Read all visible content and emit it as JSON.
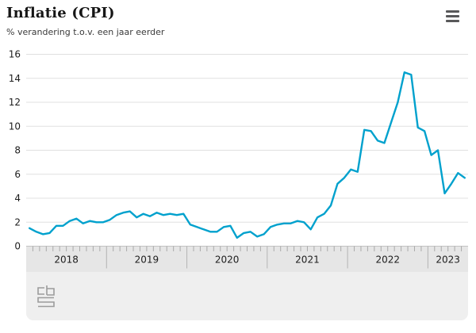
{
  "header": {
    "title": "Inflatie (CPI)",
    "subtitle": "% verandering t.o.v. een jaar eerder",
    "menu_icon": "hamburger-menu-icon"
  },
  "footer": {
    "logo_icon": "cbs-logo"
  },
  "colors": {
    "line": "#00a1cd",
    "grid": "#e0e0e0",
    "axis_band": "#e6e6e6",
    "band_edge": "#c3c3c3",
    "tick": "#aaaaaa",
    "year_separator": "#b3b3b3",
    "footer_band": "#efefef",
    "text": "#1d1d1d",
    "icon": "#58585a",
    "logo": "#9c9c9c"
  },
  "chart_data": {
    "type": "line",
    "title": "Inflatie (CPI)",
    "subtitle": "% verandering t.o.v. een jaar eerder",
    "unit": "%",
    "frequency": "monthly",
    "start_month": "2018-01",
    "end_month": "2023-06",
    "x_tick_labels": [
      "2018",
      "2019",
      "2020",
      "2021",
      "2022",
      "2023"
    ],
    "y_ticks": [
      0,
      2,
      4,
      6,
      8,
      10,
      12,
      14,
      16
    ],
    "ylim": [
      0,
      16
    ],
    "grid": true,
    "legend": false,
    "series": [
      {
        "name": "Inflatie (CPI)",
        "color": "#00a1cd",
        "values": [
          1.5,
          1.2,
          1.0,
          1.1,
          1.7,
          1.7,
          2.1,
          2.3,
          1.9,
          2.1,
          2.0,
          2.0,
          2.2,
          2.6,
          2.8,
          2.9,
          2.4,
          2.7,
          2.5,
          2.8,
          2.6,
          2.7,
          2.6,
          2.7,
          1.8,
          1.6,
          1.4,
          1.2,
          1.2,
          1.6,
          1.7,
          0.7,
          1.1,
          1.2,
          0.8,
          1.0,
          1.6,
          1.8,
          1.9,
          1.9,
          2.1,
          2.0,
          1.4,
          2.4,
          2.7,
          3.4,
          5.2,
          5.7,
          6.4,
          6.2,
          9.7,
          9.6,
          8.8,
          8.6,
          10.3,
          12.0,
          14.5,
          14.3,
          9.9,
          9.6,
          7.6,
          8.0,
          4.4,
          5.2,
          6.1,
          5.7
        ]
      }
    ]
  }
}
